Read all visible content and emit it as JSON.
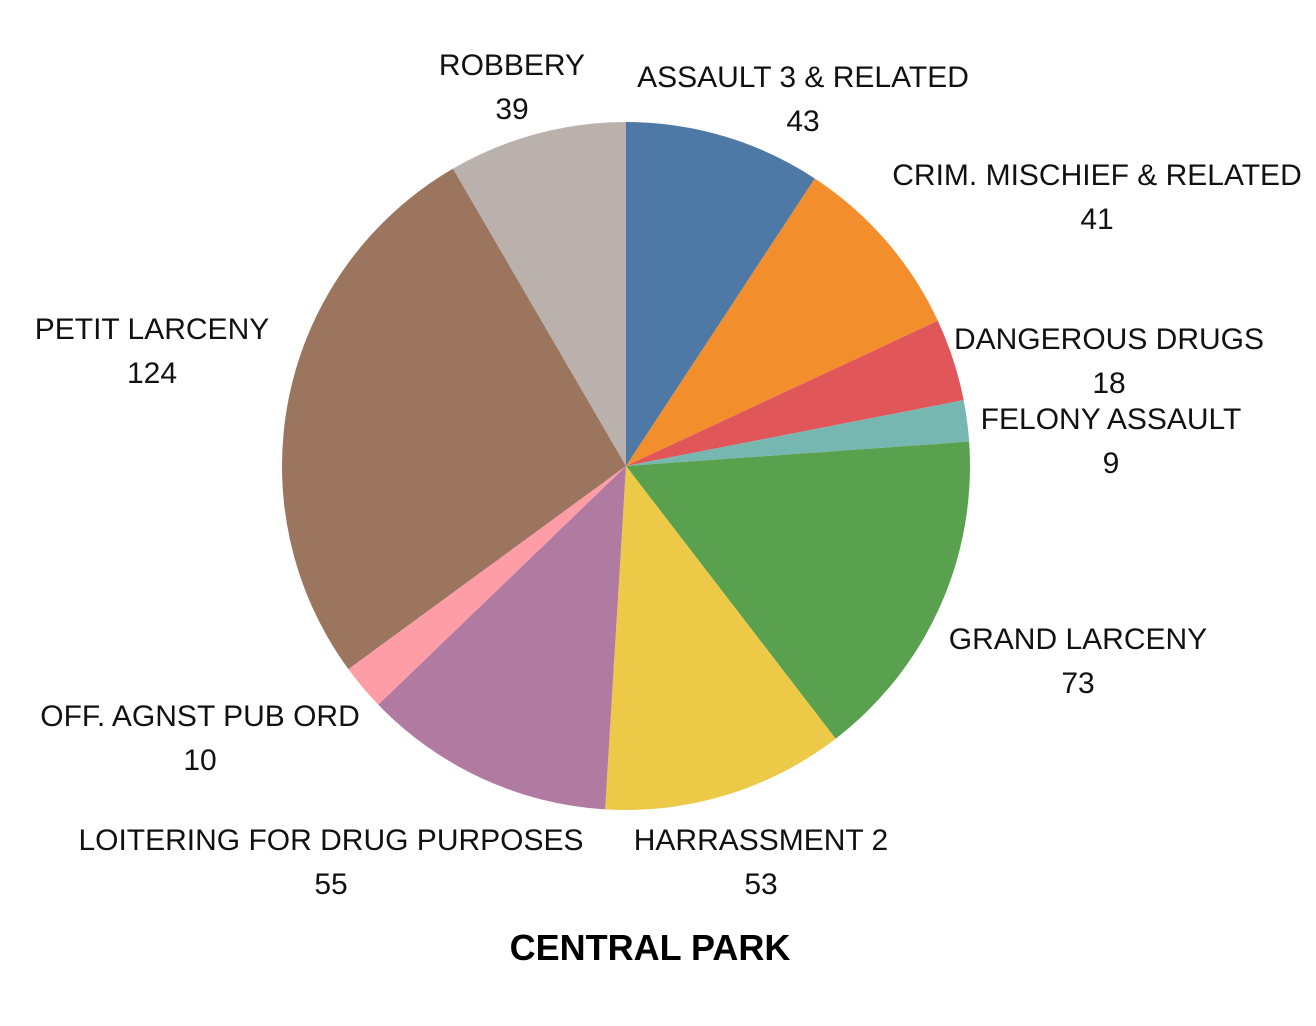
{
  "chart_data": {
    "type": "pie",
    "title": "CENTRAL PARK",
    "start_angle_deg": 0,
    "direction": "clockwise",
    "slices": [
      {
        "label": "ASSAULT 3 & RELATED",
        "value": 43,
        "display": "43",
        "color": "#4E79A7"
      },
      {
        "label": "CRIM. MISCHIEF & RELATED",
        "value": 41,
        "display": "41",
        "color": "#F28E2B"
      },
      {
        "label": "DANGEROUS DRUGS",
        "value": 18,
        "display": "18",
        "color": "#E15759"
      },
      {
        "label": "FELONY ASSAULT",
        "value": 9,
        "display": "9",
        "color": "#76B7B2"
      },
      {
        "label": "GRAND LARCENY",
        "value": 73,
        "display": "73",
        "color": "#59A14F"
      },
      {
        "label": "HARRASSMENT 2",
        "value": 53,
        "display": "53",
        "color": "#EDC948"
      },
      {
        "label": "LOITERING FOR DRUG PURPOSES",
        "value": 55,
        "display": "55",
        "color": "#B07AA1"
      },
      {
        "label": "OFF. AGNST PUB ORD",
        "value": 10,
        "display": "10",
        "color": "#FF9DA7"
      },
      {
        "label": "PETIT LARCENY",
        "value": 124,
        "display": "124",
        "color": "#9C755F"
      },
      {
        "label": "ROBBERY",
        "value": 39,
        "display": "39",
        "color": "#BAB0AC"
      }
    ]
  }
}
